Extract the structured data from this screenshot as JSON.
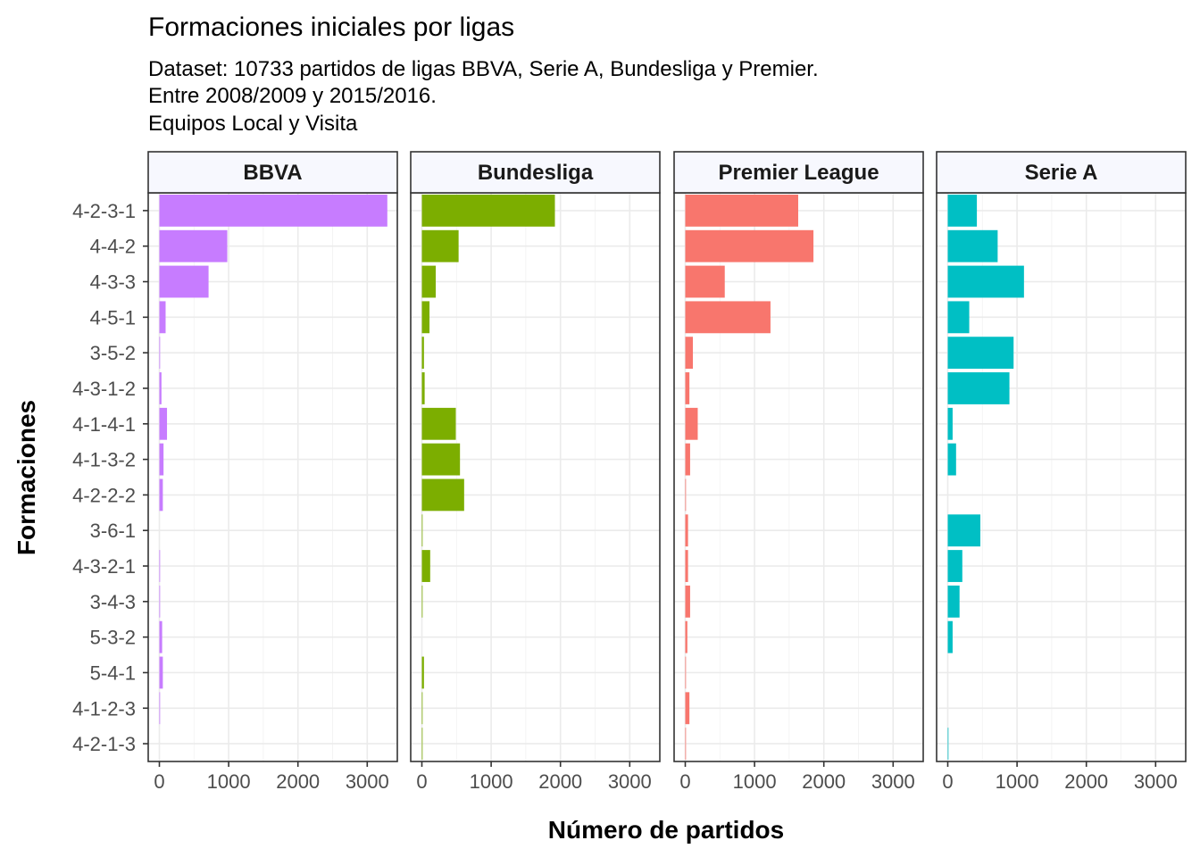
{
  "chart_data": {
    "type": "bar",
    "orientation": "horizontal",
    "title": "Formaciones iniciales por ligas",
    "subtitle": [
      "Dataset: 10733 partidos de ligas BBVA, Serie A, Bundesliga y Premier.",
      "Entre 2008/2009 y 2015/2016.",
      "Equipos Local y Visita"
    ],
    "xlabel": "Número de partidos",
    "ylabel": "Formaciones",
    "xlim": [
      0,
      3300
    ],
    "xticks": [
      0,
      1000,
      2000,
      3000
    ],
    "grid": true,
    "legend": "none",
    "categories": [
      "4-2-3-1",
      "4-4-2",
      "4-3-3",
      "4-5-1",
      "3-5-2",
      "4-3-1-2",
      "4-1-4-1",
      "4-1-3-2",
      "4-2-2-2",
      "3-6-1",
      "4-3-2-1",
      "3-4-3",
      "5-3-2",
      "5-4-1",
      "4-1-2-3",
      "4-2-1-3"
    ],
    "panels": [
      {
        "name": "BBVA",
        "color": "#C77CFF",
        "values": [
          3290,
          980,
          710,
          90,
          10,
          30,
          110,
          60,
          50,
          0,
          10,
          10,
          40,
          50,
          10,
          0
        ]
      },
      {
        "name": "Bundesliga",
        "color": "#7CAE00",
        "values": [
          1920,
          530,
          200,
          110,
          30,
          40,
          490,
          550,
          610,
          10,
          120,
          10,
          0,
          30,
          10,
          10
        ]
      },
      {
        "name": "Premier League",
        "color": "#F8766D",
        "values": [
          1630,
          1850,
          570,
          1230,
          110,
          60,
          180,
          70,
          10,
          40,
          40,
          70,
          30,
          10,
          60,
          10
        ]
      },
      {
        "name": "Serie A",
        "color": "#00BFC4",
        "values": [
          420,
          720,
          1100,
          310,
          950,
          890,
          70,
          120,
          0,
          470,
          210,
          170,
          70,
          0,
          0,
          10
        ]
      }
    ]
  }
}
